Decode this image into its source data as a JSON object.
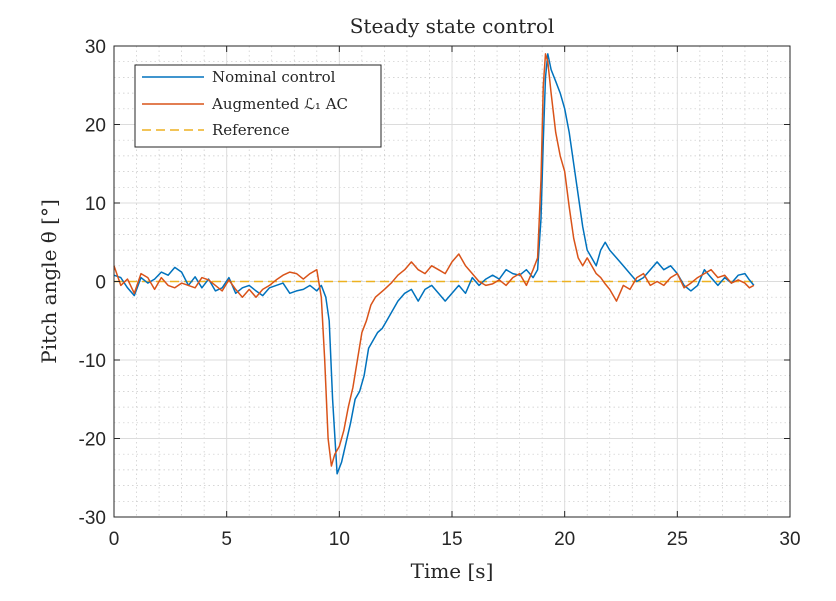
{
  "chart_data": {
    "type": "line",
    "title": "Steady state control",
    "xlabel": "Time [s]",
    "ylabel": "Pitch angle θ [°]",
    "xlim": [
      0,
      30
    ],
    "ylim": [
      -30,
      30
    ],
    "xticks": [
      0,
      5,
      10,
      15,
      20,
      25,
      30
    ],
    "yticks": [
      -30,
      -20,
      -10,
      0,
      10,
      20,
      30
    ],
    "xtick_labels": [
      "0",
      "5",
      "10",
      "15",
      "20",
      "25",
      "30"
    ],
    "ytick_labels": [
      "-30",
      "-20",
      "-10",
      "0",
      "10",
      "20",
      "30"
    ],
    "grid": true,
    "minor_grid": true,
    "legend_position": "top-left",
    "series": [
      {
        "name": "Nominal control",
        "color": "#0072BD",
        "style": "solid",
        "x": [
          0,
          0.3,
          0.6,
          0.9,
          1.2,
          1.5,
          1.8,
          2.1,
          2.4,
          2.7,
          3.0,
          3.3,
          3.6,
          3.9,
          4.2,
          4.5,
          4.8,
          5.1,
          5.4,
          5.7,
          6.0,
          6.3,
          6.6,
          6.9,
          7.2,
          7.5,
          7.8,
          8.1,
          8.4,
          8.7,
          9.0,
          9.2,
          9.4,
          9.55,
          9.7,
          9.9,
          10.1,
          10.3,
          10.5,
          10.7,
          10.9,
          11.1,
          11.3,
          11.5,
          11.7,
          11.9,
          12.1,
          12.3,
          12.6,
          12.9,
          13.2,
          13.5,
          13.8,
          14.1,
          14.4,
          14.7,
          15.0,
          15.3,
          15.6,
          15.9,
          16.2,
          16.5,
          16.8,
          17.1,
          17.4,
          17.7,
          18.0,
          18.3,
          18.6,
          18.8,
          18.95,
          19.05,
          19.15,
          19.25,
          19.4,
          19.6,
          19.8,
          20.0,
          20.2,
          20.4,
          20.6,
          20.8,
          21.0,
          21.2,
          21.4,
          21.6,
          21.8,
          22.0,
          22.3,
          22.6,
          22.9,
          23.2,
          23.5,
          23.8,
          24.1,
          24.4,
          24.7,
          25.0,
          25.3,
          25.6,
          25.9,
          26.2,
          26.5,
          26.8,
          27.1,
          27.4,
          27.7,
          28.0,
          28.2,
          28.4
        ],
        "y": [
          0.8,
          0.5,
          -0.8,
          -1.8,
          0.5,
          -0.2,
          0.3,
          1.2,
          0.8,
          1.8,
          1.2,
          -0.5,
          0.6,
          -0.8,
          0.3,
          -1.2,
          -0.8,
          0.5,
          -1.5,
          -0.8,
          -0.5,
          -1.2,
          -1.8,
          -0.8,
          -0.5,
          -0.2,
          -1.5,
          -1.2,
          -1.0,
          -0.5,
          -1.2,
          -0.5,
          -2.0,
          -5.0,
          -15.0,
          -24.5,
          -23.0,
          -20.5,
          -18.0,
          -15.0,
          -14.0,
          -12.0,
          -8.5,
          -7.5,
          -6.5,
          -6.0,
          -5.0,
          -4.0,
          -2.5,
          -1.5,
          -1.0,
          -2.5,
          -1.0,
          -0.5,
          -1.5,
          -2.5,
          -1.5,
          -0.5,
          -1.5,
          0.5,
          -0.5,
          0.3,
          0.8,
          0.3,
          1.5,
          1.0,
          0.8,
          1.5,
          0.5,
          1.5,
          8.0,
          18.0,
          26.0,
          29.0,
          27.0,
          25.5,
          24.0,
          22.0,
          19.0,
          15.0,
          11.0,
          7.0,
          4.0,
          3.0,
          2.0,
          4.0,
          5.0,
          4.0,
          3.0,
          2.0,
          1.0,
          0.0,
          0.5,
          1.5,
          2.5,
          1.5,
          2.0,
          1.0,
          -0.5,
          -1.2,
          -0.5,
          1.5,
          0.5,
          -0.5,
          0.5,
          -0.2,
          0.8,
          1.0,
          0.2,
          -0.5
        ]
      },
      {
        "name": "Augmented ℒ₁ AC",
        "color": "#D95319",
        "style": "solid",
        "x": [
          0,
          0.3,
          0.6,
          0.9,
          1.2,
          1.5,
          1.8,
          2.1,
          2.4,
          2.7,
          3.0,
          3.3,
          3.6,
          3.9,
          4.2,
          4.5,
          4.8,
          5.1,
          5.4,
          5.7,
          6.0,
          6.3,
          6.6,
          6.9,
          7.2,
          7.5,
          7.8,
          8.1,
          8.4,
          8.7,
          9.0,
          9.2,
          9.35,
          9.5,
          9.65,
          9.8,
          10.0,
          10.2,
          10.4,
          10.6,
          10.8,
          11.0,
          11.2,
          11.4,
          11.6,
          11.8,
          12.0,
          12.3,
          12.6,
          12.9,
          13.2,
          13.5,
          13.8,
          14.1,
          14.4,
          14.7,
          15.0,
          15.3,
          15.6,
          15.9,
          16.2,
          16.5,
          16.8,
          17.1,
          17.4,
          17.7,
          18.0,
          18.3,
          18.6,
          18.8,
          18.95,
          19.05,
          19.15,
          19.25,
          19.4,
          19.6,
          19.8,
          20.0,
          20.2,
          20.4,
          20.6,
          20.8,
          21.0,
          21.2,
          21.4,
          21.6,
          21.8,
          22.0,
          22.3,
          22.6,
          22.9,
          23.2,
          23.5,
          23.8,
          24.1,
          24.4,
          24.7,
          25.0,
          25.3,
          25.6,
          25.9,
          26.2,
          26.5,
          26.8,
          27.1,
          27.4,
          27.7,
          28.0,
          28.2,
          28.4
        ],
        "y": [
          2.0,
          -0.5,
          0.3,
          -1.5,
          1.0,
          0.5,
          -1.0,
          0.5,
          -0.5,
          -0.8,
          -0.2,
          -0.5,
          -0.8,
          0.5,
          0.2,
          -0.5,
          -1.2,
          0.2,
          -1.0,
          -2.0,
          -1.0,
          -2.0,
          -1.0,
          -0.5,
          0.2,
          0.8,
          1.2,
          1.0,
          0.3,
          1.0,
          1.5,
          -2.0,
          -10.0,
          -20.0,
          -23.5,
          -22.0,
          -21.0,
          -19.0,
          -16.0,
          -13.5,
          -10.0,
          -6.5,
          -5.0,
          -3.0,
          -2.0,
          -1.5,
          -1.0,
          -0.2,
          0.8,
          1.5,
          2.5,
          1.5,
          1.0,
          2.0,
          1.5,
          1.0,
          2.5,
          3.5,
          2.0,
          1.0,
          0.0,
          -0.5,
          -0.3,
          0.2,
          -0.5,
          0.5,
          1.0,
          -0.5,
          1.5,
          3.0,
          13.0,
          25.0,
          29.0,
          28.0,
          24.0,
          19.0,
          16.0,
          14.0,
          9.5,
          5.5,
          3.0,
          2.0,
          3.0,
          2.0,
          1.0,
          0.5,
          -0.3,
          -1.0,
          -2.5,
          -0.5,
          -1.0,
          0.5,
          1.0,
          -0.5,
          0.0,
          -0.5,
          0.5,
          1.0,
          -0.8,
          -0.2,
          0.5,
          1.0,
          1.5,
          0.5,
          0.8,
          -0.2,
          0.2,
          -0.2,
          -0.8,
          -0.5
        ]
      },
      {
        "name": "Reference",
        "color": "#EDB120",
        "style": "dashed",
        "x": [
          0,
          28.4
        ],
        "y": [
          0,
          0
        ]
      }
    ]
  }
}
